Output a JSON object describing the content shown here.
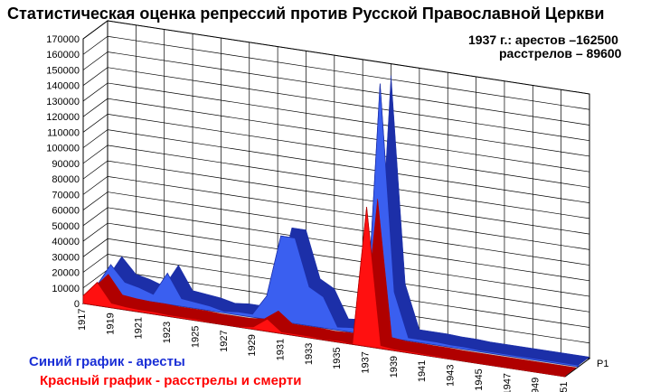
{
  "title": "Статистическая оценка репрессий против Русской Православной Церкви",
  "annotation": {
    "line1": "1937  г.: арестов –162500",
    "line2": "расстрелов – 89600"
  },
  "legend": {
    "blue": "Синий график -  аресты",
    "red": "Красный график - расстрелы  и смерти"
  },
  "colors": {
    "blue": "#3a5ff0",
    "blue_dark": "#1c2fa8",
    "red": "#ff1010",
    "red_dark": "#b00000",
    "grid": "#000000"
  },
  "chart_data": {
    "type": "area",
    "projection": "3d",
    "categories": [
      "1917",
      "1918",
      "1919",
      "1920",
      "1921",
      "1922",
      "1923",
      "1924",
      "1925",
      "1926",
      "1927",
      "1928",
      "1929",
      "1930",
      "1931",
      "1932",
      "1933",
      "1934",
      "1935",
      "1936",
      "1937",
      "1938",
      "1939",
      "1940",
      "1941",
      "1942",
      "1943",
      "1944",
      "1945",
      "1946",
      "1947",
      "1948",
      "1949",
      "1950",
      "1951"
    ],
    "x_tick_labels": [
      "1917",
      "1919",
      "1921",
      "1923",
      "1925",
      "1927",
      "1929",
      "1931",
      "1933",
      "1935",
      "1937",
      "1939",
      "1941",
      "1943",
      "1945",
      "1947",
      "1949",
      "1951"
    ],
    "series": [
      {
        "name": "",
        "color": "blue",
        "values": [
          5000,
          20000,
          10000,
          8000,
          5000,
          20000,
          5000,
          4000,
          3000,
          1000,
          2000,
          2000,
          15000,
          55000,
          55000,
          25000,
          20000,
          2000,
          3000,
          2000,
          162500,
          30000,
          2000,
          2000,
          2000,
          1500,
          1500,
          1000,
          1000,
          1000,
          1000,
          1000,
          1000,
          1000,
          1000
        ]
      },
      {
        "name": "",
        "color": "red",
        "values": [
          5000,
          15000,
          3000,
          2000,
          1500,
          1500,
          1000,
          1000,
          1000,
          500,
          500,
          500,
          1500,
          8000,
          1000,
          1000,
          1000,
          500,
          1000,
          500,
          89600,
          2000,
          1000,
          1000,
          800,
          800,
          500,
          500,
          500,
          500,
          500,
          500,
          500,
          500,
          500
        ]
      }
    ],
    "series_axis_label": "Р1",
    "ylim": [
      0,
      170000
    ],
    "yticks": [
      0,
      10000,
      20000,
      30000,
      40000,
      50000,
      60000,
      70000,
      80000,
      90000,
      100000,
      110000,
      120000,
      130000,
      140000,
      150000,
      160000,
      170000
    ],
    "grid": true
  }
}
